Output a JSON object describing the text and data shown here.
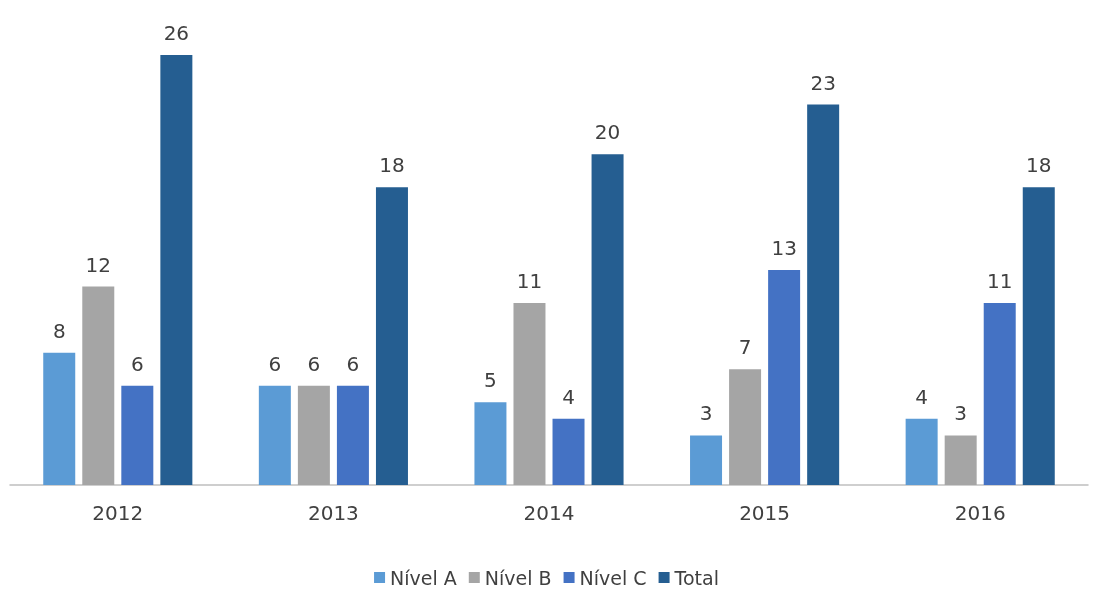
{
  "chart_data": {
    "type": "bar",
    "categories": [
      "2012",
      "2013",
      "2014",
      "2015",
      "2016"
    ],
    "series": [
      {
        "name": "Nível A",
        "color": "#5b9bd5",
        "values": [
          8,
          6,
          5,
          3,
          4
        ]
      },
      {
        "name": "Nível B",
        "color": "#a5a5a5",
        "values": [
          12,
          6,
          11,
          7,
          3
        ]
      },
      {
        "name": "Nível C",
        "color": "#4472c4",
        "values": [
          6,
          6,
          4,
          13,
          11
        ]
      },
      {
        "name": "Total",
        "color": "#255e91",
        "values": [
          26,
          18,
          20,
          23,
          18
        ]
      }
    ],
    "data_labels": true,
    "legend": "bottom",
    "tick_labels": "x"
  }
}
